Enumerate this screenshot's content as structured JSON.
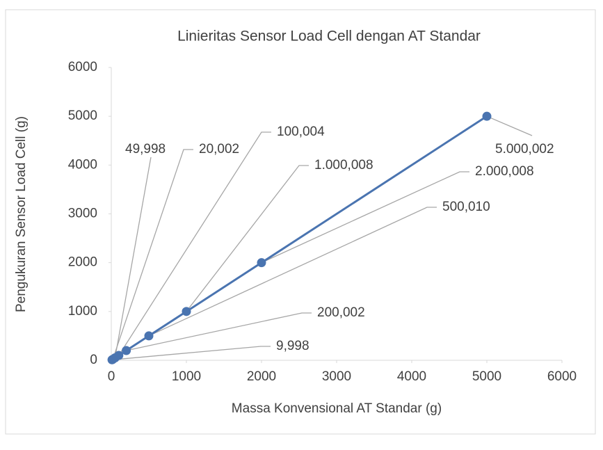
{
  "chart_data": {
    "type": "line",
    "title": "Linieritas Sensor Load Cell dengan AT Standar",
    "xlabel": "Massa Konvensional AT Standar (g)",
    "ylabel": "Pengukuran Sensor Load Cell (g)",
    "x": [
      10,
      20,
      50,
      100,
      200,
      500,
      1000,
      2000,
      5000
    ],
    "values": [
      9.998,
      20.002,
      49.998,
      100.004,
      200.002,
      500.01,
      1000.008,
      2000.008,
      5000.002
    ],
    "value_labels": [
      "9,998",
      "20,002",
      "49,998",
      "100,004",
      "200,002",
      "500,010",
      "1.000,008",
      "2.000,008",
      "5.000,002"
    ],
    "color": "#4a74b0",
    "xlim": [
      0,
      6000
    ],
    "xticks": [
      0,
      1000,
      2000,
      3000,
      4000,
      5000,
      6000
    ],
    "ylim": [
      0,
      6000
    ],
    "yticks": [
      0,
      1000,
      2000,
      3000,
      4000,
      5000,
      6000
    ],
    "grid": false
  }
}
